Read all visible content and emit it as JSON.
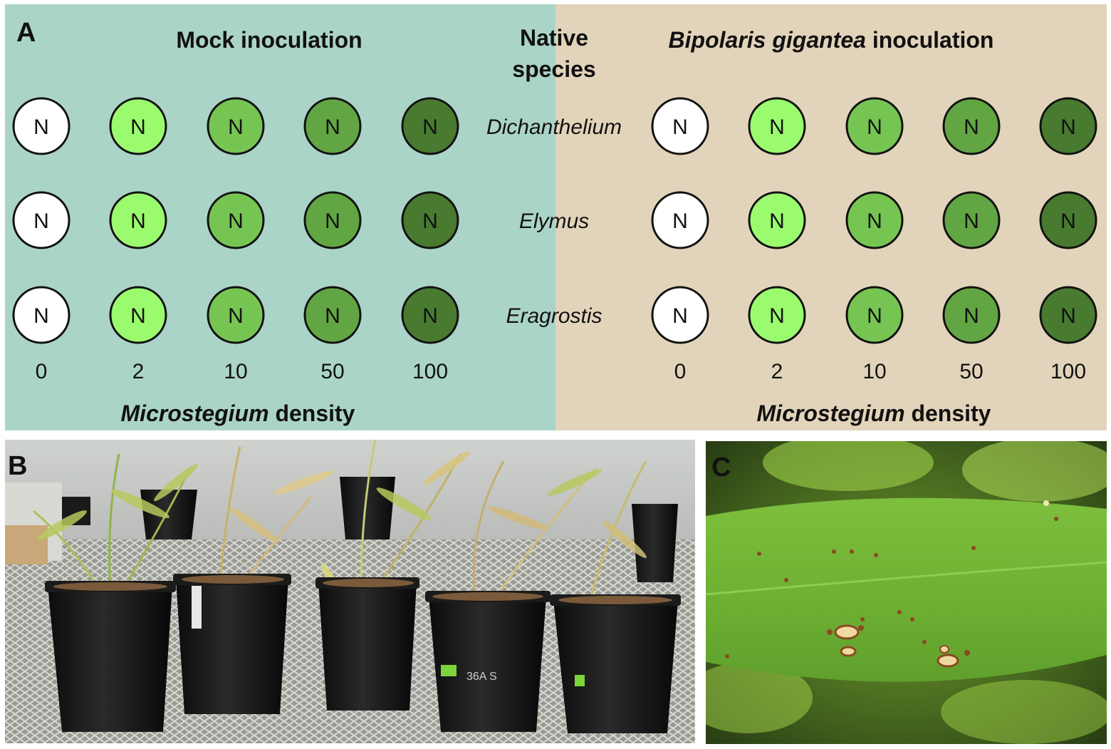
{
  "panel_a": {
    "letter": "A",
    "left_title": "Mock inoculation",
    "right_title_italic": "Bipolaris gigantea",
    "right_title_rest": " inoculation",
    "center_header": [
      "Native",
      "species"
    ],
    "species": [
      "Dichanthelium",
      "Elymus",
      "Eragrostis"
    ],
    "densities": [
      "0",
      "2",
      "10",
      "50",
      "100"
    ],
    "circle_label": "N",
    "circle_colors": [
      "#ffffff",
      "#9bfb6e",
      "#76c553",
      "#62a543",
      "#487a30"
    ],
    "axis_label_italic": "Microstegium",
    "axis_label_rest": " density",
    "bg_left": "#abd4c8",
    "bg_right": "#e2d4ba"
  },
  "panel_b": {
    "letter": "B",
    "pot_labels": [
      "36A S"
    ]
  },
  "panel_c": {
    "letter": "C"
  }
}
